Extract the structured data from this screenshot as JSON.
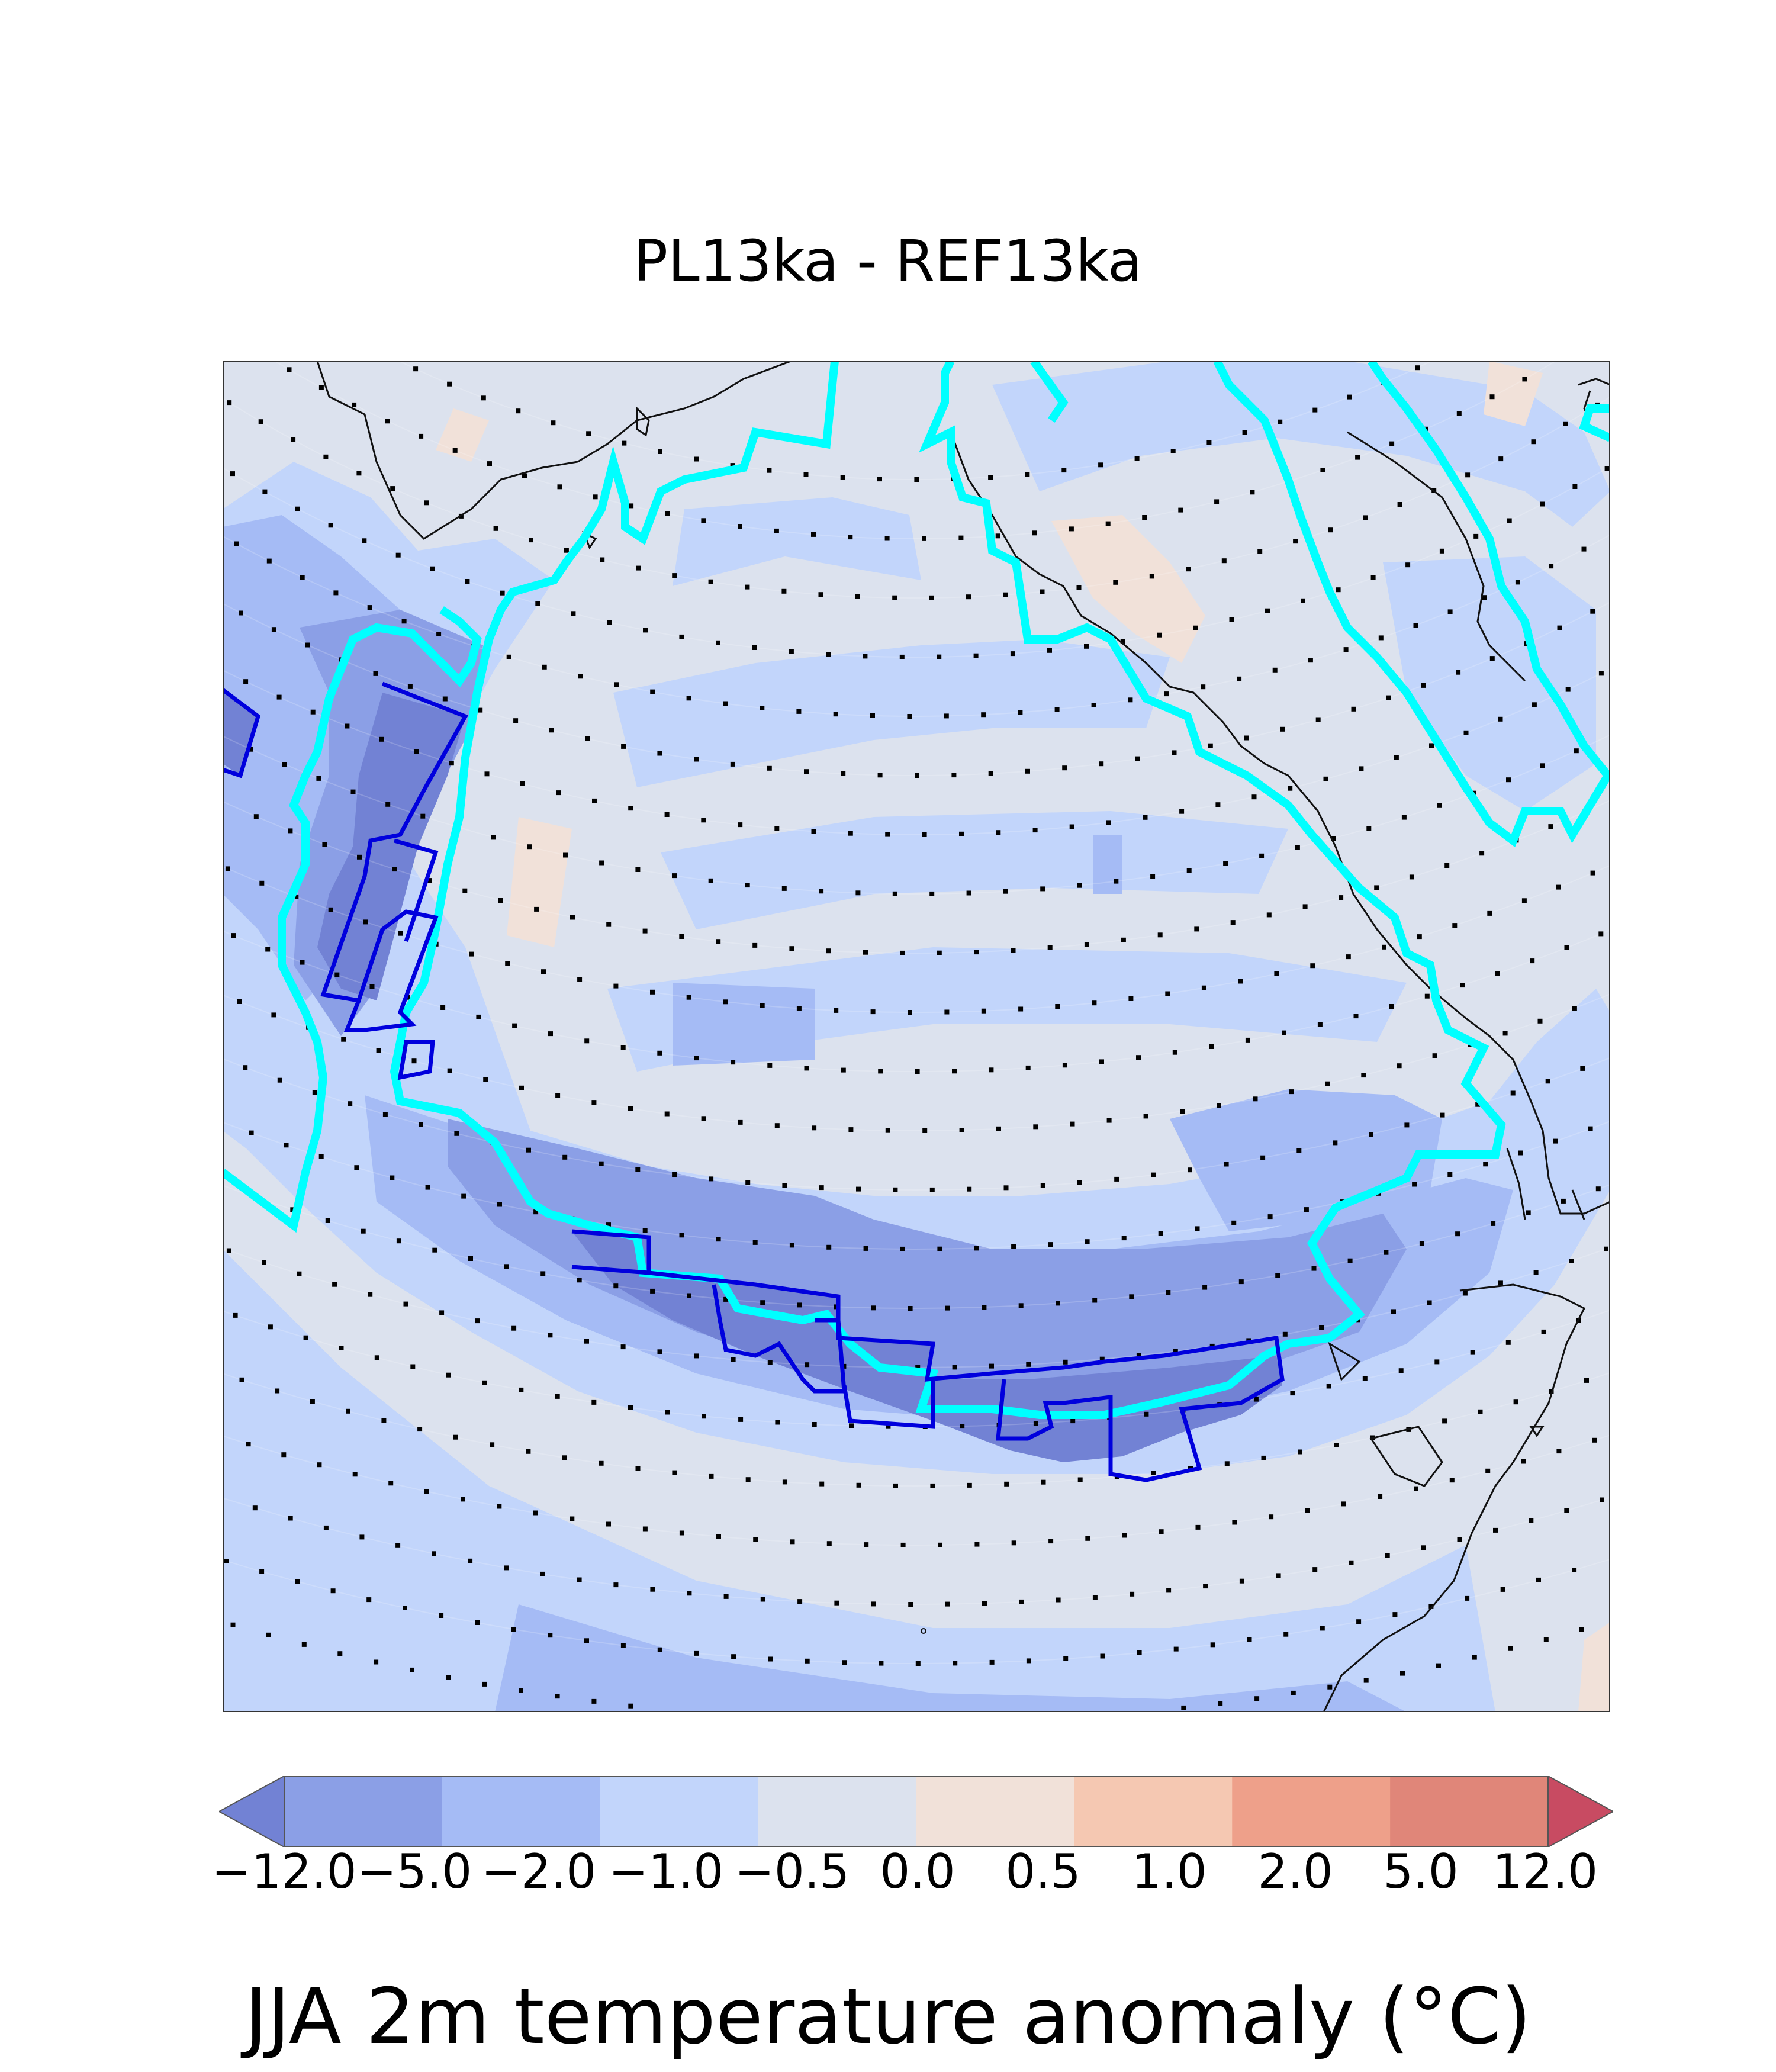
{
  "title": "PL13ka - REF13ka",
  "colorbar": {
    "label": "JJA 2m temperature anomaly (°C)",
    "ticks": [
      "−12.0",
      "−5.0",
      "−2.0",
      "−1.0",
      "−0.5",
      "0.0",
      "0.5",
      "1.0",
      "2.0",
      "5.0",
      "12.0"
    ],
    "colors": [
      "#7282d4",
      "#8b9fe6",
      "#a5bbf5",
      "#c2d5fb",
      "#dce2ee",
      "#f1e1d9",
      "#f5c8b2",
      "#eea08a",
      "#e08679",
      "#c84b62"
    ],
    "extend": "both"
  },
  "map": {
    "ocean_fill": "#dce2ee",
    "ice_outline_color": "#00ffff",
    "significance_outline_color": "#0000dd",
    "dot_color": "#000000",
    "coast_color": "#111111"
  }
}
